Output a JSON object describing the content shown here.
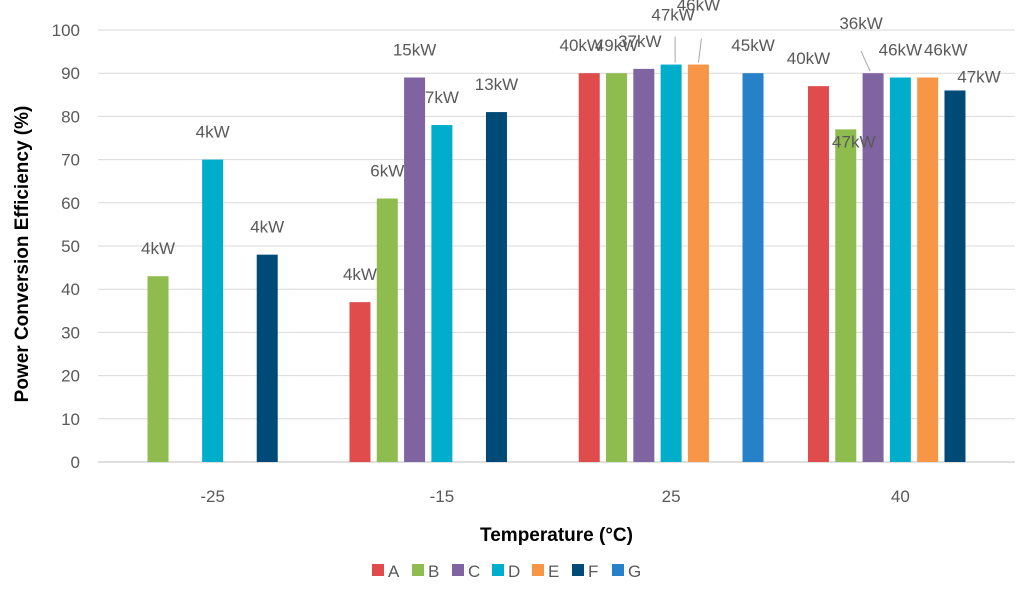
{
  "chart_data": {
    "type": "bar",
    "title": "",
    "xlabel": "Temperature (°C)",
    "ylabel": "Power Conversion Efficiency (%)",
    "ylim": [
      0,
      100
    ],
    "yticks": [
      0,
      10,
      20,
      30,
      40,
      50,
      60,
      70,
      80,
      90,
      100
    ],
    "categories": [
      "-25",
      "-15",
      "25",
      "40"
    ],
    "grid": true,
    "legend_position": "bottom",
    "series": [
      {
        "name": "A",
        "color": "#E04B4B",
        "values": [
          null,
          37,
          90,
          87
        ],
        "labels": [
          null,
          "4kW",
          "40kW",
          "40kW"
        ]
      },
      {
        "name": "B",
        "color": "#8FBC4F",
        "values": [
          43,
          61,
          90,
          77
        ],
        "labels": [
          "4kW",
          "6kW",
          "49kW",
          "47kW"
        ]
      },
      {
        "name": "C",
        "color": "#8064A2",
        "values": [
          null,
          89,
          91,
          90
        ],
        "labels": [
          null,
          "15kW",
          "37kW",
          "36kW"
        ]
      },
      {
        "name": "D",
        "color": "#00AECB",
        "values": [
          70,
          78,
          92,
          89
        ],
        "labels": [
          "4kW",
          "7kW",
          "47kW",
          "46kW"
        ]
      },
      {
        "name": "E",
        "color": "#F79646",
        "values": [
          null,
          null,
          92,
          89
        ],
        "labels": [
          null,
          null,
          "46kW",
          "46kW"
        ]
      },
      {
        "name": "F",
        "color": "#004A78",
        "values": [
          48,
          81,
          null,
          86
        ],
        "labels": [
          "4kW",
          "13kW",
          null,
          "47kW"
        ]
      },
      {
        "name": "G",
        "color": "#2681C8",
        "values": [
          null,
          null,
          90,
          null
        ],
        "labels": [
          null,
          null,
          "45kW",
          null
        ]
      }
    ]
  }
}
